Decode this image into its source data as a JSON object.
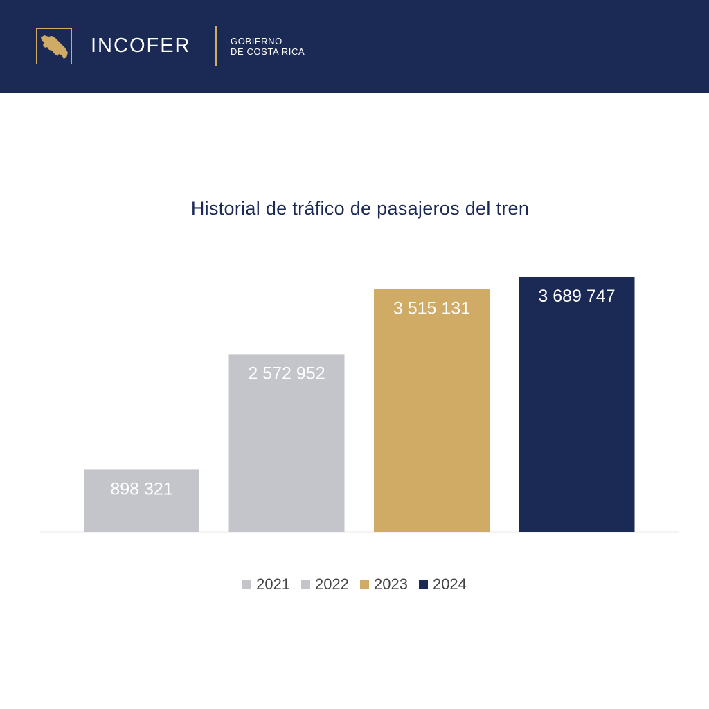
{
  "header": {
    "brand": "INCOFER",
    "gov_line1": "GOBIERNO",
    "gov_line2": "DE COSTA RICA",
    "background": "#1b2a55",
    "accent": "#cfab65",
    "logo_icon": "costa-rica-map-icon"
  },
  "chart_data": {
    "type": "bar",
    "title": "Historial de tráfico de pasajeros del tren",
    "categories": [
      "2021",
      "2022",
      "2023",
      "2024"
    ],
    "values": [
      898321,
      2572952,
      3515131,
      3689747
    ],
    "value_labels": [
      "898 321",
      "2 572 952",
      "3 515 131",
      "3 689 747"
    ],
    "colors": [
      "#c3c5ca",
      "#c3c5ca",
      "#cfab65",
      "#1b2a55"
    ],
    "ylim": [
      0,
      3850000
    ],
    "grid": false,
    "legend_position": "bottom"
  }
}
